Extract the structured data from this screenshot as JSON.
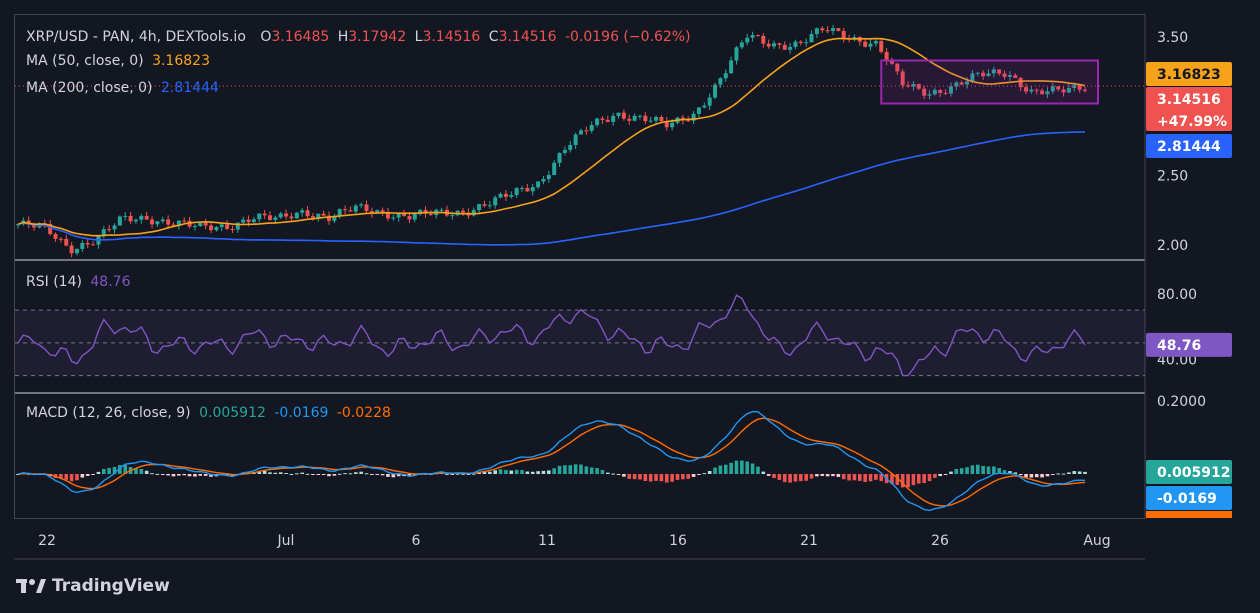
{
  "symbol": "XRP/USD - PAN, 4h, DEXTools.io",
  "ohlc": {
    "o_label": "O",
    "o": "3.16485",
    "h_label": "H",
    "h": "3.17942",
    "l_label": "L",
    "l": "3.14516",
    "c_label": "C",
    "c": "3.14516",
    "change": "-0.0196 (−0.62%)"
  },
  "ma50": {
    "label": "MA (50, close, 0)",
    "value": "3.16823",
    "color": "#f7a21b"
  },
  "ma200": {
    "label": "MA (200, close, 0)",
    "value": "2.81444",
    "color": "#2962ff"
  },
  "rsi": {
    "label": "RSI (14)",
    "value": "48.76",
    "color": "#7e57c2"
  },
  "macd": {
    "label": "MACD (12, 26, close, 9)",
    "hist": "0.005912",
    "macd": "-0.0169",
    "signal": "-0.0228"
  },
  "price_axis": {
    "ticks": [
      "3.50",
      "2.50",
      "2.00"
    ],
    "badges": {
      "ma50": "3.16823",
      "price": "3.14516",
      "pct": "+47.99%",
      "ma200": "2.81444"
    }
  },
  "rsi_axis": {
    "ticks": [
      "80.00",
      "40.00"
    ],
    "badge": "48.76"
  },
  "macd_axis": {
    "ticks": [
      "0.2000"
    ],
    "badges": {
      "hist": "0.005912",
      "macd": "-0.0169",
      "signal": "-0.0228"
    }
  },
  "x_axis": {
    "labels": [
      "22",
      "Jul",
      "6",
      "11",
      "16",
      "21",
      "26",
      "Aug"
    ]
  },
  "brand": "TradingView",
  "colors": {
    "up": "#26a69a",
    "down": "#ef5350",
    "ma50": "#f7a21b",
    "ma200": "#2962ff",
    "rsi": "#7e57c2",
    "macd": "#2196f3",
    "signal": "#ff6d00",
    "box": "#9c27b0",
    "bg": "#131722"
  },
  "chart_data": {
    "type": "line",
    "price_scale": [
      1.9,
      3.6
    ],
    "close_series": [
      {
        "date": "Jun 20",
        "close": 2.15
      },
      {
        "date": "Jun 21",
        "close": 2.12
      },
      {
        "date": "Jun 22",
        "close": 1.98
      },
      {
        "date": "Jun 23",
        "close": 2.04
      },
      {
        "date": "Jun 24",
        "close": 2.18
      },
      {
        "date": "Jun 25",
        "close": 2.2
      },
      {
        "date": "Jun 26",
        "close": 2.16
      },
      {
        "date": "Jun 27",
        "close": 2.12
      },
      {
        "date": "Jun 28",
        "close": 2.14
      },
      {
        "date": "Jun 29",
        "close": 2.2
      },
      {
        "date": "Jun 30",
        "close": 2.18
      },
      {
        "date": "Jul 1",
        "close": 2.25
      },
      {
        "date": "Jul 2",
        "close": 2.2
      },
      {
        "date": "Jul 3",
        "close": 2.26
      },
      {
        "date": "Jul 4",
        "close": 2.24
      },
      {
        "date": "Jul 5",
        "close": 2.21
      },
      {
        "date": "Jul 6",
        "close": 2.22
      },
      {
        "date": "Jul 7",
        "close": 2.24
      },
      {
        "date": "Jul 8",
        "close": 2.3
      },
      {
        "date": "Jul 9",
        "close": 2.36
      },
      {
        "date": "Jul 10",
        "close": 2.45
      },
      {
        "date": "Jul 11",
        "close": 2.7
      },
      {
        "date": "Jul 12",
        "close": 2.85
      },
      {
        "date": "Jul 13",
        "close": 2.95
      },
      {
        "date": "Jul 14",
        "close": 2.92
      },
      {
        "date": "Jul 15",
        "close": 2.85
      },
      {
        "date": "Jul 16",
        "close": 2.95
      },
      {
        "date": "Jul 17",
        "close": 3.2
      },
      {
        "date": "Jul 18",
        "close": 3.5
      },
      {
        "date": "Jul 19",
        "close": 3.45
      },
      {
        "date": "Jul 20",
        "close": 3.45
      },
      {
        "date": "Jul 21",
        "close": 3.55
      },
      {
        "date": "Jul 22",
        "close": 3.5
      },
      {
        "date": "Jul 23",
        "close": 3.45
      },
      {
        "date": "Jul 24",
        "close": 3.15
      },
      {
        "date": "Jul 25",
        "close": 3.1
      },
      {
        "date": "Jul 26",
        "close": 3.15
      },
      {
        "date": "Jul 27",
        "close": 3.22
      },
      {
        "date": "Jul 28",
        "close": 3.25
      },
      {
        "date": "Jul 29",
        "close": 3.1
      },
      {
        "date": "Jul 30",
        "close": 3.1
      },
      {
        "date": "Jul 31",
        "close": 3.14516
      }
    ],
    "ma50_end": 3.16823,
    "ma200_end": 2.81444,
    "rsi_scale": [
      20,
      100
    ],
    "rsi_levels": [
      30,
      50,
      70
    ],
    "rsi_last": 48.76,
    "macd_last": {
      "macd": -0.0169,
      "signal": -0.0228,
      "hist": 0.005912
    },
    "consolidation_range": [
      3.02,
      3.33
    ]
  }
}
